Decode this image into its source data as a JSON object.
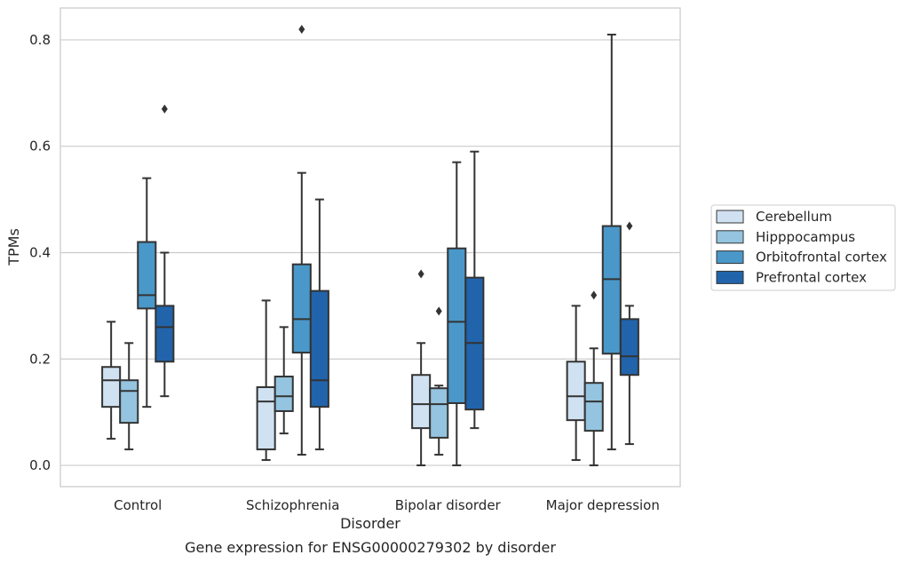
{
  "caption": "Gene expression for ENSG00000279302 by disorder",
  "chart_data": {
    "type": "box",
    "xlabel": "Disorder",
    "ylabel": "TPMs",
    "ylim": [
      -0.04,
      0.86
    ],
    "yticks": [
      "0.0",
      "0.2",
      "0.4",
      "0.6",
      "0.8"
    ],
    "grid": true,
    "legend_position": "right",
    "categories": [
      "Control",
      "Schizophrenia",
      "Bipolar disorder",
      "Major depression"
    ],
    "series": [
      {
        "name": "Cerebellum",
        "color": "#d0e1f2",
        "boxes": [
          {
            "whisker_low": 0.05,
            "q1": 0.11,
            "median": 0.16,
            "q3": 0.185,
            "whisker_high": 0.27,
            "outliers": []
          },
          {
            "whisker_low": 0.01,
            "q1": 0.03,
            "median": 0.12,
            "q3": 0.147,
            "whisker_high": 0.31,
            "outliers": []
          },
          {
            "whisker_low": 0.0,
            "q1": 0.07,
            "median": 0.115,
            "q3": 0.17,
            "whisker_high": 0.23,
            "outliers": [
              0.36
            ]
          },
          {
            "whisker_low": 0.01,
            "q1": 0.085,
            "median": 0.13,
            "q3": 0.195,
            "whisker_high": 0.3,
            "outliers": []
          }
        ]
      },
      {
        "name": "Hipppocampus",
        "color": "#94c4df",
        "boxes": [
          {
            "whisker_low": 0.03,
            "q1": 0.08,
            "median": 0.14,
            "q3": 0.16,
            "whisker_high": 0.23,
            "outliers": []
          },
          {
            "whisker_low": 0.06,
            "q1": 0.102,
            "median": 0.13,
            "q3": 0.167,
            "whisker_high": 0.26,
            "outliers": []
          },
          {
            "whisker_low": 0.02,
            "q1": 0.052,
            "median": 0.115,
            "q3": 0.145,
            "whisker_high": 0.15,
            "outliers": [
              0.29
            ]
          },
          {
            "whisker_low": 0.0,
            "q1": 0.065,
            "median": 0.12,
            "q3": 0.155,
            "whisker_high": 0.22,
            "outliers": [
              0.32
            ]
          }
        ]
      },
      {
        "name": "Orbitofrontal cortex",
        "color": "#4a98c9",
        "boxes": [
          {
            "whisker_low": 0.11,
            "q1": 0.295,
            "median": 0.32,
            "q3": 0.42,
            "whisker_high": 0.54,
            "outliers": []
          },
          {
            "whisker_low": 0.02,
            "q1": 0.212,
            "median": 0.275,
            "q3": 0.378,
            "whisker_high": 0.55,
            "outliers": [
              0.82
            ]
          },
          {
            "whisker_low": 0.0,
            "q1": 0.117,
            "median": 0.27,
            "q3": 0.408,
            "whisker_high": 0.57,
            "outliers": []
          },
          {
            "whisker_low": 0.03,
            "q1": 0.21,
            "median": 0.35,
            "q3": 0.45,
            "whisker_high": 0.81,
            "outliers": []
          }
        ]
      },
      {
        "name": "Prefrontal cortex",
        "color": "#2164ab",
        "boxes": [
          {
            "whisker_low": 0.13,
            "q1": 0.195,
            "median": 0.26,
            "q3": 0.3,
            "whisker_high": 0.4,
            "outliers": [
              0.67
            ]
          },
          {
            "whisker_low": 0.03,
            "q1": 0.11,
            "median": 0.16,
            "q3": 0.328,
            "whisker_high": 0.5,
            "outliers": []
          },
          {
            "whisker_low": 0.07,
            "q1": 0.105,
            "median": 0.23,
            "q3": 0.353,
            "whisker_high": 0.59,
            "outliers": []
          },
          {
            "whisker_low": 0.04,
            "q1": 0.17,
            "median": 0.205,
            "q3": 0.275,
            "whisker_high": 0.3,
            "outliers": [
              0.45
            ]
          }
        ]
      }
    ]
  }
}
